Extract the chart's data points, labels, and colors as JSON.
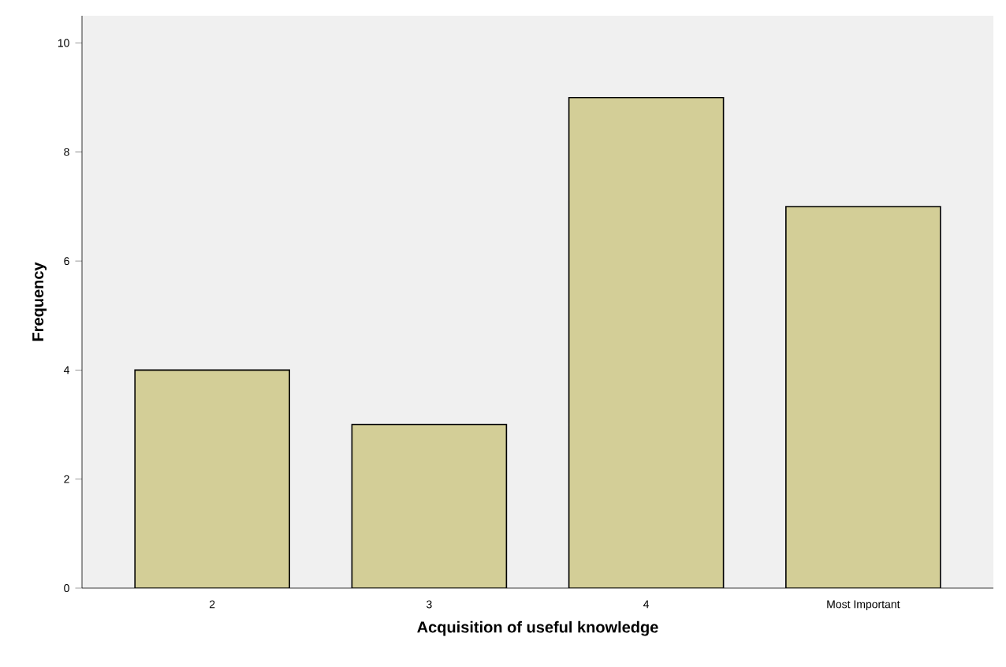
{
  "chart_data": {
    "type": "bar",
    "xlabel": "Acquisition of useful knowledge",
    "ylabel": "Frequency",
    "categories": [
      "2",
      "3",
      "4",
      "Most Important"
    ],
    "values": [
      4,
      3,
      9,
      7
    ],
    "color": "#d3ce97",
    "ylim": [
      0,
      10.5
    ],
    "yticks": [
      0,
      2,
      4,
      6,
      8,
      10
    ],
    "grid": false
  }
}
